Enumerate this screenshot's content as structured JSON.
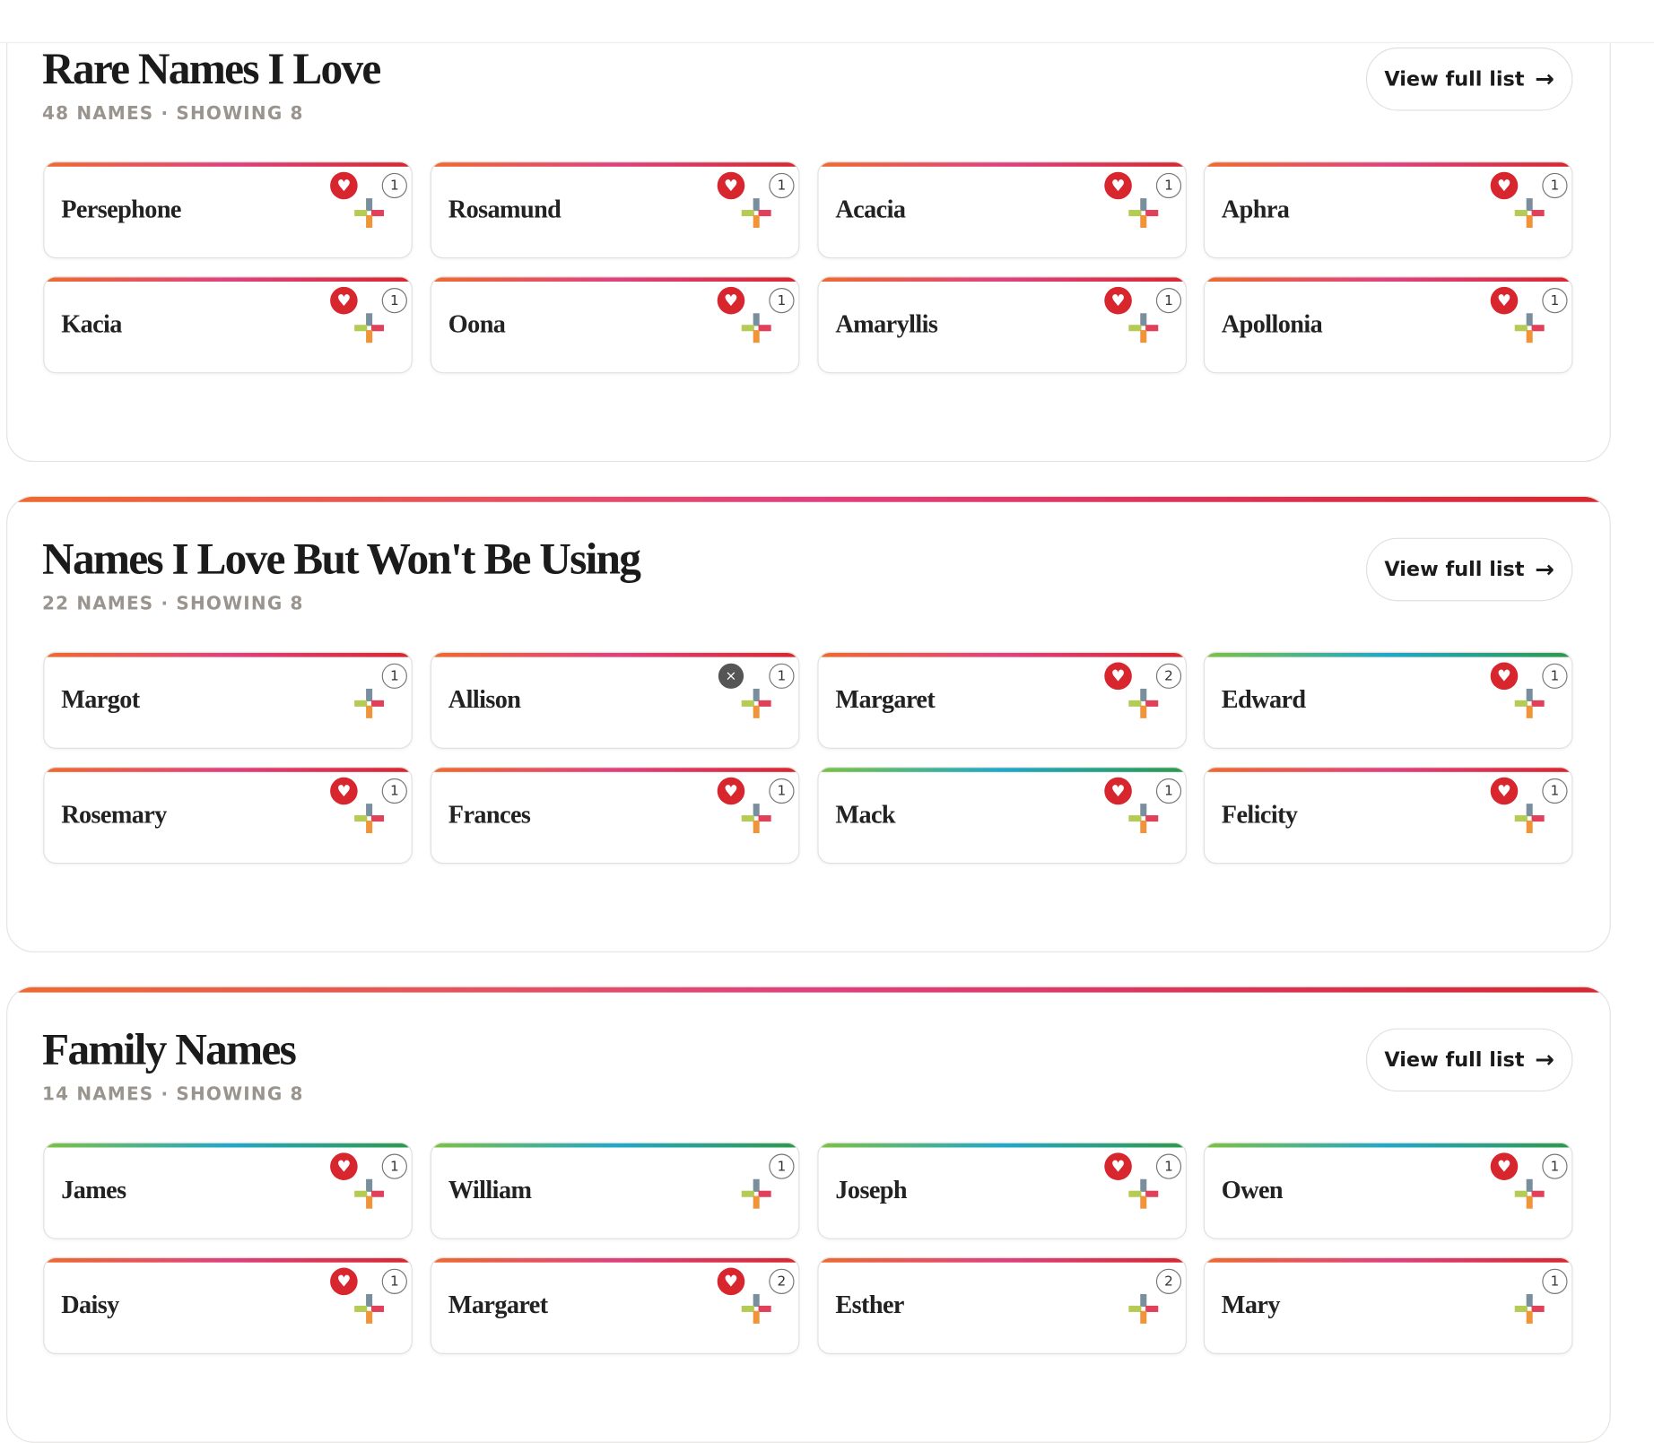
{
  "sections": [
    {
      "title": "Rare Names I Love",
      "subtitle": "48 NAMES · SHOWING 8",
      "button": "View full list",
      "cards": [
        {
          "name": "Persephone",
          "count": 1,
          "status": "heart",
          "accent": "warm"
        },
        {
          "name": "Rosamund",
          "count": 1,
          "status": "heart",
          "accent": "warm"
        },
        {
          "name": "Acacia",
          "count": 1,
          "status": "heart",
          "accent": "warm"
        },
        {
          "name": "Aphra",
          "count": 1,
          "status": "heart",
          "accent": "warm"
        },
        {
          "name": "Kacia",
          "count": 1,
          "status": "heart",
          "accent": "warm"
        },
        {
          "name": "Oona",
          "count": 1,
          "status": "heart",
          "accent": "warm"
        },
        {
          "name": "Amaryllis",
          "count": 1,
          "status": "heart",
          "accent": "warm"
        },
        {
          "name": "Apollonia",
          "count": 1,
          "status": "heart",
          "accent": "warm"
        }
      ]
    },
    {
      "title": "Names I Love But Won't Be Using",
      "subtitle": "22 NAMES · SHOWING 8",
      "button": "View full list",
      "cards": [
        {
          "name": "Margot",
          "count": 1,
          "status": "none",
          "accent": "warm"
        },
        {
          "name": "Allison",
          "count": 1,
          "status": "x",
          "accent": "warm"
        },
        {
          "name": "Margaret",
          "count": 2,
          "status": "heart",
          "accent": "warm"
        },
        {
          "name": "Edward",
          "count": 1,
          "status": "heart",
          "accent": "cool"
        },
        {
          "name": "Rosemary",
          "count": 1,
          "status": "heart",
          "accent": "warm"
        },
        {
          "name": "Frances",
          "count": 1,
          "status": "heart",
          "accent": "warm"
        },
        {
          "name": "Mack",
          "count": 1,
          "status": "heart",
          "accent": "cool"
        },
        {
          "name": "Felicity",
          "count": 1,
          "status": "heart",
          "accent": "warm"
        }
      ]
    },
    {
      "title": "Family Names",
      "subtitle": "14 NAMES · SHOWING 8",
      "button": "View full list",
      "cards": [
        {
          "name": "James",
          "count": 1,
          "status": "heart",
          "accent": "cool"
        },
        {
          "name": "William",
          "count": 1,
          "status": "none",
          "accent": "cool"
        },
        {
          "name": "Joseph",
          "count": 1,
          "status": "heart",
          "accent": "cool"
        },
        {
          "name": "Owen",
          "count": 1,
          "status": "heart",
          "accent": "cool"
        },
        {
          "name": "Daisy",
          "count": 1,
          "status": "heart",
          "accent": "warm"
        },
        {
          "name": "Margaret",
          "count": 2,
          "status": "heart",
          "accent": "warm"
        },
        {
          "name": "Esther",
          "count": 2,
          "status": "none",
          "accent": "warm"
        },
        {
          "name": "Mary",
          "count": 1,
          "status": "none",
          "accent": "warm"
        }
      ]
    }
  ]
}
